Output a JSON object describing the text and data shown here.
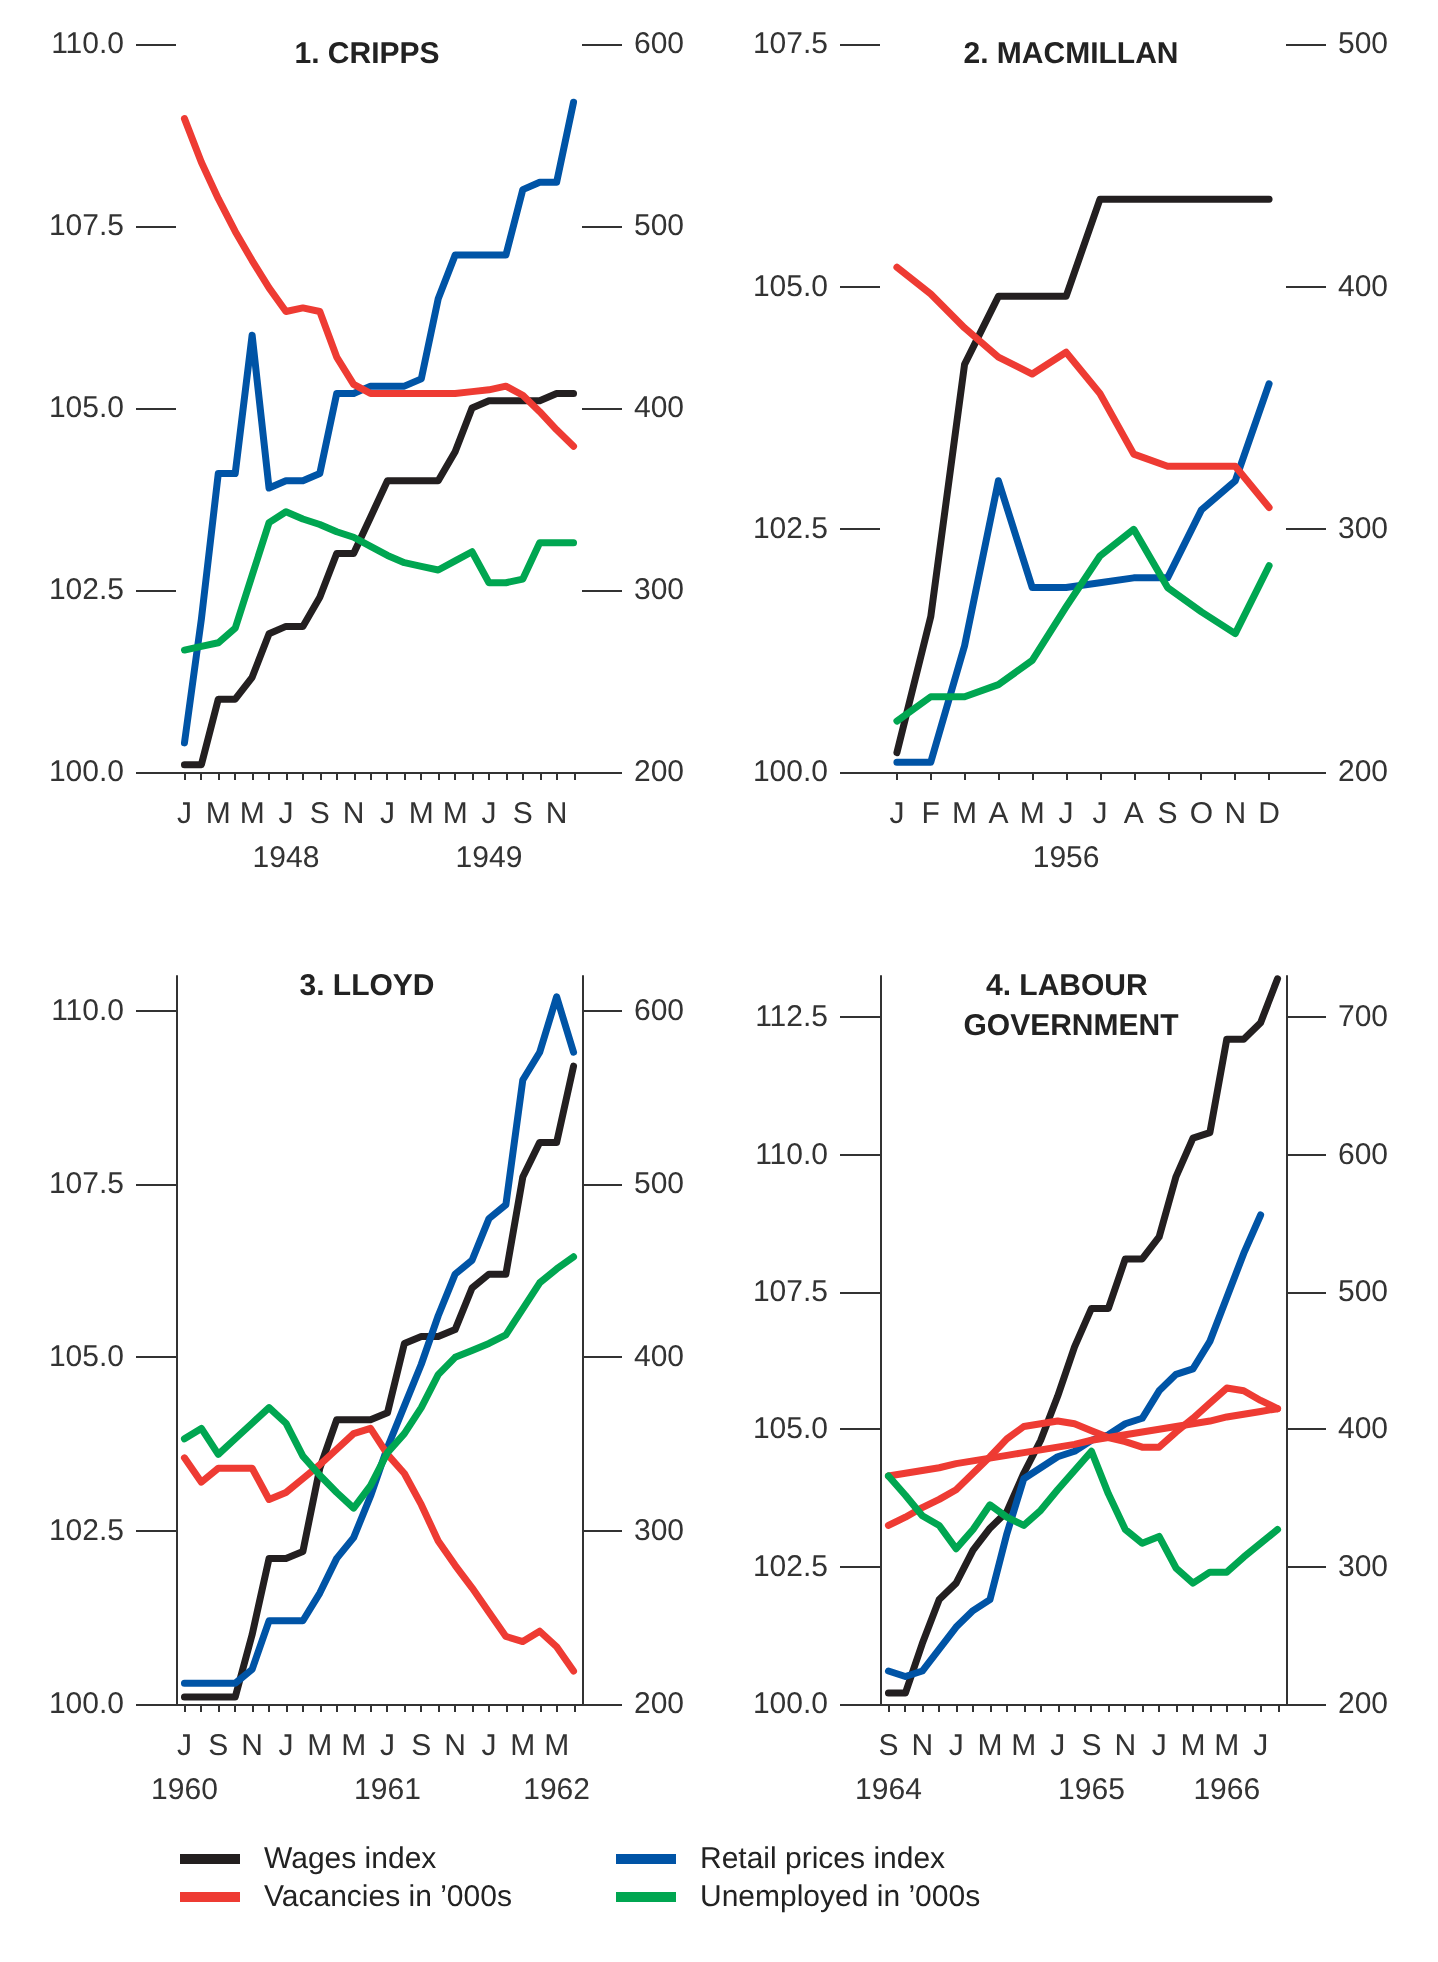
{
  "chart_data": [
    {
      "type": "line",
      "title": "1. CRIPPS",
      "marker": "none",
      "legend": "bottom",
      "categories": [
        "J",
        null,
        "M",
        null,
        "M",
        null,
        "J\n1948",
        null,
        "S",
        null,
        "N",
        null,
        "J",
        null,
        "M",
        null,
        "M",
        null,
        "J\n1949",
        null,
        "S",
        null,
        "N",
        null
      ],
      "ylim": [
        100,
        110
      ],
      "yticks": [
        {
          "value": 100,
          "label": "100.0"
        },
        {
          "value": 102.5,
          "label": "102.5"
        },
        {
          "value": 105,
          "label": "105.0"
        },
        {
          "value": 107.5,
          "label": "107.5"
        },
        {
          "value": 110,
          "label": "110.0"
        }
      ],
      "y2lim": [
        200,
        600
      ],
      "y2ticks": [
        200,
        300,
        400,
        500,
        600
      ],
      "series": [
        {
          "name": "Wages index",
          "color": "#231f20",
          "values": [
            100.1,
            100.1,
            101.0,
            101.0,
            101.3,
            101.9,
            102.0,
            102.0,
            102.4,
            103.0,
            103.0,
            103.5,
            104.0,
            104.0,
            104.0,
            104.0,
            104.4,
            105.0,
            105.1,
            105.1,
            105.1,
            105.1,
            105.2,
            105.2
          ]
        },
        {
          "name": "Retail prices index",
          "color": "#0054a6",
          "values": [
            100.4,
            102.1,
            104.1,
            104.1,
            106.0,
            103.9,
            104.0,
            104.0,
            104.1,
            105.2,
            105.2,
            105.3,
            105.3,
            105.3,
            105.4,
            106.5,
            107.1,
            107.1,
            107.1,
            107.1,
            108.0,
            108.1,
            108.1,
            109.2
          ]
        },
        {
          "name": "Vacancies in ’000s",
          "color": "#ee3b33",
          "axis": "y2",
          "values": [
            559,
            535,
            515,
            497,
            481,
            466,
            453,
            455,
            453,
            428,
            413,
            408,
            408,
            408,
            408,
            408,
            408,
            409,
            410,
            412,
            407,
            398,
            388,
            379
          ]
        },
        {
          "name": "Unemployed in ’000s",
          "color": "#00a651",
          "axis": "y2",
          "values": [
            267,
            269,
            271,
            279,
            308,
            337,
            343,
            339,
            336,
            332,
            329,
            324,
            319,
            315,
            313,
            311,
            316,
            321,
            304,
            304,
            306,
            326,
            326,
            326
          ]
        }
      ]
    },
    {
      "type": "line",
      "title": "2. MACMILLAN",
      "marker": "none",
      "categories": [
        "J",
        "F",
        "M",
        "A",
        "M",
        "J\n1956",
        "J",
        "A",
        "S",
        "O",
        "N",
        "D"
      ],
      "ylim": [
        100,
        107.5
      ],
      "yticks": [
        {
          "value": 100,
          "label": "100.0"
        },
        {
          "value": 102.5,
          "label": "102.5"
        },
        {
          "value": 105,
          "label": "105.0"
        },
        {
          "value": 107.5,
          "label": "107.5"
        }
      ],
      "y2lim": [
        200,
        500
      ],
      "y2ticks": [
        200,
        300,
        400,
        500
      ],
      "series": [
        {
          "color": "#231f20",
          "values": [
            100.2,
            101.6,
            104.2,
            104.9,
            104.9,
            104.9,
            105.9,
            105.9,
            105.9,
            105.9,
            105.9,
            105.9
          ]
        },
        {
          "color": "#0054a6",
          "values": [
            100.1,
            100.1,
            101.3,
            103.0,
            101.9,
            101.9,
            101.95,
            102.0,
            102.0,
            102.7,
            103.0,
            104.0
          ]
        },
        {
          "color": "#ee3b33",
          "axis": "y2",
          "values": [
            408,
            397,
            383,
            371,
            364,
            373,
            356,
            331,
            326,
            326,
            326,
            309
          ]
        },
        {
          "color": "#00a651",
          "axis": "y2",
          "values": [
            221,
            231,
            231,
            236,
            246,
            268,
            289,
            300,
            276,
            266,
            257,
            285
          ]
        }
      ]
    },
    {
      "type": "line",
      "title": "3. LLOYD",
      "marker": "none",
      "categories": [
        "J\n1960",
        null,
        "S",
        null,
        "N",
        null,
        "J",
        null,
        "M",
        null,
        "M",
        null,
        "J\n1961",
        null,
        "S",
        null,
        "N",
        null,
        "J",
        null,
        "M",
        null,
        "M\n1962",
        null
      ],
      "ylim": [
        100,
        110.5
      ],
      "yticks": [
        {
          "value": 100,
          "label": "100.0"
        },
        {
          "value": 102.5,
          "label": "102.5"
        },
        {
          "value": 105,
          "label": "105.0"
        },
        {
          "value": 107.5,
          "label": "107.5"
        },
        {
          "value": 110,
          "label": "110.0"
        }
      ],
      "y2lim": [
        200,
        620
      ],
      "y2ticks": [
        200,
        300,
        400,
        500,
        600
      ],
      "series": [
        {
          "color": "#231f20",
          "values": [
            100.1,
            100.1,
            100.1,
            100.1,
            101.0,
            102.1,
            102.1,
            102.2,
            103.4,
            104.1,
            104.1,
            104.1,
            104.2,
            105.2,
            105.3,
            105.3,
            105.4,
            106.0,
            106.2,
            106.2,
            107.6,
            108.1,
            108.1,
            109.2
          ]
        },
        {
          "color": "#0054a6",
          "values": [
            100.3,
            100.3,
            100.3,
            100.3,
            100.5,
            101.2,
            101.2,
            101.2,
            101.6,
            102.1,
            102.4,
            103.0,
            103.7,
            104.3,
            104.9,
            105.6,
            106.2,
            106.4,
            107.0,
            107.2,
            109.0,
            109.4,
            110.2,
            109.4
          ]
        },
        {
          "color": "#ee3b33",
          "axis": "y2",
          "values": [
            342,
            328,
            336,
            336,
            336,
            318,
            322,
            330,
            338,
            347,
            356,
            359,
            344,
            333,
            315,
            294,
            280,
            267,
            253,
            239,
            236,
            242,
            233,
            219
          ]
        },
        {
          "color": "#00a651",
          "axis": "y2",
          "values": [
            353,
            359,
            344,
            353,
            362,
            371,
            362,
            343,
            332,
            322,
            313,
            326,
            345,
            356,
            371,
            390,
            400,
            404,
            408,
            413,
            428,
            443,
            451,
            458
          ]
        }
      ]
    },
    {
      "type": "line",
      "title": "4. LABOUR GOVERNMENT",
      "marker": "none",
      "categories": [
        "S\n1964",
        null,
        "N",
        null,
        "J",
        null,
        "M",
        null,
        "M",
        null,
        "J",
        null,
        "S\n1965",
        null,
        "N",
        null,
        "J",
        null,
        "M",
        null,
        "M\n1966",
        null,
        "J",
        null
      ],
      "ylim": [
        100,
        113.25
      ],
      "yticks": [
        {
          "value": 100,
          "label": "100.0"
        },
        {
          "value": 102.5,
          "label": "102.5"
        },
        {
          "value": 105,
          "label": "105.0"
        },
        {
          "value": 107.5,
          "label": "107.5"
        },
        {
          "value": 110,
          "label": "110.0"
        },
        {
          "value": 112.5,
          "label": "112.5"
        }
      ],
      "y2lim": [
        200,
        730
      ],
      "y2ticks": [
        200,
        300,
        400,
        500,
        600,
        700
      ],
      "series": [
        {
          "color": "#231f20",
          "values": [
            100.2,
            100.2,
            101.1,
            101.9,
            102.2,
            102.8,
            103.2,
            103.5,
            104.2,
            104.8,
            105.6,
            106.5,
            107.2,
            107.2,
            108.1,
            108.1,
            108.5,
            109.6,
            110.3,
            110.4,
            112.1,
            112.1,
            112.4,
            113.2
          ]
        },
        {
          "color": "#0054a6",
          "values": [
            100.6,
            100.5,
            100.6,
            101.0,
            101.4,
            101.7,
            101.9,
            103.1,
            104.1,
            104.3,
            104.5,
            104.6,
            104.8,
            104.9,
            105.1,
            105.2,
            105.7,
            106.0,
            106.1,
            106.6,
            107.4,
            108.2,
            108.9,
            null
          ]
        },
        {
          "color": "#ee3b33",
          "axis": "y2",
          "values": [
            330,
            336,
            343,
            349,
            356,
            368,
            380,
            393,
            402,
            404,
            406,
            404,
            399,
            394,
            391,
            387,
            387,
            398,
            408,
            419,
            430,
            428,
            421,
            415
          ]
        },
        {
          "color": "#ee3b33",
          "axis": "y2",
          "values": [
            366,
            368,
            370,
            372,
            375,
            377,
            379,
            381,
            383,
            385,
            387,
            389,
            392,
            394,
            396,
            398,
            400,
            402,
            404,
            406,
            409,
            411,
            413,
            415
          ]
        },
        {
          "color": "#00a651",
          "axis": "y2",
          "values": [
            366,
            352,
            337,
            330,
            313,
            327,
            345,
            336,
            330,
            341,
            356,
            370,
            384,
            353,
            327,
            317,
            322,
            299,
            288,
            296,
            296,
            307,
            317,
            327
          ]
        }
      ]
    }
  ]
}
